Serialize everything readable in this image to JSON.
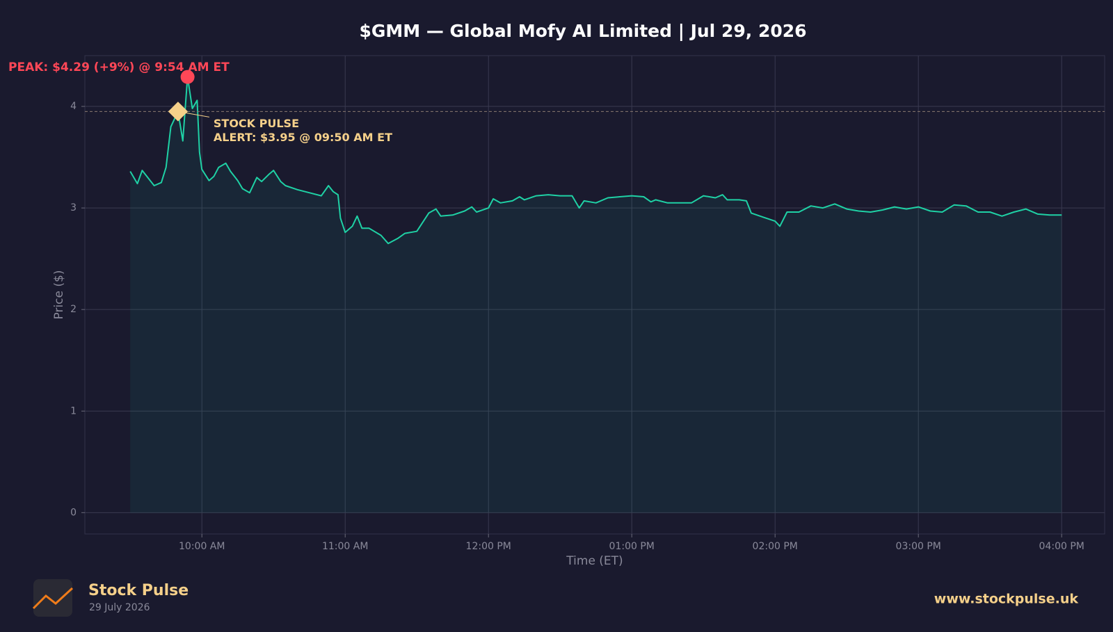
{
  "chart_data": {
    "type": "line",
    "title": "$GMM — Global Mofy AI Limited  |  Jul 29, 2026",
    "x_label": "Time (ET)",
    "y_label": "Price ($)",
    "color": "#1fd1a5",
    "grid": true,
    "xlim": [
      "09:11 AM",
      "04:18 PM"
    ],
    "xticks": [
      "10:00 AM",
      "11:00 AM",
      "12:00 PM",
      "01:00 PM",
      "02:00 PM",
      "03:00 PM",
      "04:00 PM"
    ],
    "ylim": [
      -0.21,
      4.5
    ],
    "yticks": [
      0,
      1,
      2,
      3,
      4
    ],
    "x": [
      "09:30 AM",
      "09:33 AM",
      "09:35 AM",
      "09:38 AM",
      "09:40 AM",
      "09:43 AM",
      "09:45 AM",
      "09:47 AM",
      "09:50 AM",
      "09:52 AM",
      "09:54 AM",
      "09:56 AM",
      "09:58 AM",
      "09:59 AM",
      "10:00 AM",
      "10:03 AM",
      "10:05 AM",
      "10:07 AM",
      "10:10 AM",
      "10:12 AM",
      "10:15 AM",
      "10:17 AM",
      "10:20 AM",
      "10:23 AM",
      "10:25 AM",
      "10:28 AM",
      "10:30 AM",
      "10:33 AM",
      "10:35 AM",
      "10:40 AM",
      "10:45 AM",
      "10:50 AM",
      "10:53 AM",
      "10:55 AM",
      "10:57 AM",
      "10:58 AM",
      "11:00 AM",
      "11:03 AM",
      "11:05 AM",
      "11:07 AM",
      "11:10 AM",
      "11:15 AM",
      "11:18 AM",
      "11:22 AM",
      "11:25 AM",
      "11:30 AM",
      "11:35 AM",
      "11:38 AM",
      "11:40 AM",
      "11:45 AM",
      "11:50 AM",
      "11:53 AM",
      "11:55 AM",
      "12:00 PM",
      "12:02 PM",
      "12:05 PM",
      "12:10 PM",
      "12:13 PM",
      "12:15 PM",
      "12:20 PM",
      "12:25 PM",
      "12:30 PM",
      "12:35 PM",
      "12:38 PM",
      "12:40 PM",
      "12:45 PM",
      "12:50 PM",
      "12:55 PM",
      "01:00 PM",
      "01:05 PM",
      "01:08 PM",
      "01:10 PM",
      "01:15 PM",
      "01:20 PM",
      "01:25 PM",
      "01:30 PM",
      "01:35 PM",
      "01:38 PM",
      "01:40 PM",
      "01:45 PM",
      "01:48 PM",
      "01:50 PM",
      "01:55 PM",
      "02:00 PM",
      "02:02 PM",
      "02:05 PM",
      "02:10 PM",
      "02:15 PM",
      "02:20 PM",
      "02:25 PM",
      "02:30 PM",
      "02:35 PM",
      "02:40 PM",
      "02:45 PM",
      "02:50 PM",
      "02:55 PM",
      "03:00 PM",
      "03:05 PM",
      "03:10 PM",
      "03:15 PM",
      "03:20 PM",
      "03:25 PM",
      "03:30 PM",
      "03:35 PM",
      "03:40 PM",
      "03:45 PM",
      "03:50 PM",
      "03:55 PM",
      "04:00 PM"
    ],
    "values": [
      3.36,
      3.24,
      3.37,
      3.28,
      3.22,
      3.25,
      3.4,
      3.8,
      3.95,
      3.66,
      4.29,
      3.98,
      4.06,
      3.55,
      3.38,
      3.27,
      3.31,
      3.4,
      3.44,
      3.36,
      3.27,
      3.19,
      3.15,
      3.3,
      3.26,
      3.33,
      3.37,
      3.26,
      3.22,
      3.18,
      3.15,
      3.12,
      3.22,
      3.16,
      3.13,
      2.9,
      2.76,
      2.82,
      2.92,
      2.8,
      2.8,
      2.73,
      2.65,
      2.7,
      2.75,
      2.77,
      2.95,
      2.99,
      2.92,
      2.93,
      2.97,
      3.01,
      2.96,
      3.0,
      3.09,
      3.05,
      3.07,
      3.11,
      3.08,
      3.12,
      3.13,
      3.12,
      3.12,
      3.0,
      3.07,
      3.05,
      3.1,
      3.11,
      3.12,
      3.11,
      3.06,
      3.08,
      3.05,
      3.05,
      3.05,
      3.12,
      3.1,
      3.13,
      3.08,
      3.08,
      3.07,
      2.95,
      2.91,
      2.87,
      2.82,
      2.96,
      2.96,
      3.02,
      3.0,
      3.04,
      2.99,
      2.97,
      2.96,
      2.98,
      3.01,
      2.99,
      3.01,
      2.97,
      2.96,
      3.03,
      3.02,
      2.96,
      2.96,
      2.92,
      2.96,
      2.99,
      2.94,
      2.93,
      2.93
    ],
    "peak": {
      "x": "09:54 AM",
      "value": 4.29,
      "color": "#ff4757",
      "label": "PEAK: $4.29 (+9%) @ 9:54 AM ET"
    },
    "alert": {
      "x": "09:50 AM",
      "value": 3.95,
      "color": "#f5d08a",
      "label": [
        "STOCK PULSE",
        "ALERT: $3.95 @ 09:50 AM ET"
      ]
    }
  },
  "branding": {
    "name": "Stock Pulse",
    "date": "29 July 2026",
    "url": "www.stockpulse.uk"
  }
}
